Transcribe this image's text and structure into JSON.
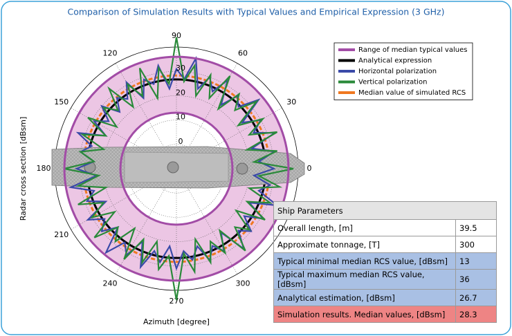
{
  "title": "Comparison of Simulation Results with Typical Values and Empirical Expression (3 GHz)",
  "chart_data": {
    "type": "polar",
    "rlabel": "Radar cross section [dBsm]",
    "thetalabel": "Azimuth [degree]",
    "rlim": [
      -10,
      40
    ],
    "rticks": [
      0,
      10,
      20,
      30
    ],
    "thetaticks": [
      0,
      30,
      60,
      90,
      120,
      150,
      180,
      210,
      240,
      270,
      300
    ],
    "grid": true,
    "legend": "upper right",
    "theta": [
      0,
      5,
      10,
      15,
      20,
      25,
      30,
      35,
      40,
      45,
      50,
      55,
      60,
      65,
      70,
      75,
      80,
      85,
      90,
      95,
      100,
      105,
      110,
      115,
      120,
      125,
      130,
      135,
      140,
      145,
      150,
      155,
      160,
      165,
      170,
      175,
      180,
      185,
      190,
      195,
      200,
      205,
      210,
      215,
      220,
      225,
      230,
      235,
      240,
      245,
      250,
      255,
      260,
      265,
      270,
      275,
      280,
      285,
      290,
      295,
      300,
      305,
      310,
      315,
      320,
      325,
      330,
      335,
      340,
      345,
      350,
      355
    ],
    "series": [
      {
        "name": "Range of median typical values",
        "kind": "band",
        "color": "#a24ca6",
        "fill": "#ecc6e4",
        "values": [
          13,
          36
        ]
      },
      {
        "name": "Analytical expression",
        "kind": "circle",
        "color": "#000000",
        "values": [
          26.7
        ]
      },
      {
        "name": "Horizontal polarization",
        "kind": "trace",
        "color": "#3a4aa8",
        "values": [
          30,
          24,
          31,
          22,
          33,
          25,
          30,
          23,
          34,
          26,
          29,
          22,
          32,
          25,
          30,
          24,
          36,
          27,
          31,
          23,
          33,
          26,
          29,
          22,
          31,
          25,
          28,
          23,
          30,
          24,
          29,
          22,
          33,
          26,
          30,
          24,
          31,
          23,
          34,
          25,
          29,
          22,
          32,
          26,
          30,
          24,
          35,
          27,
          31,
          23,
          33,
          25,
          29,
          22,
          31,
          24,
          28,
          23,
          30,
          25,
          29,
          22,
          33,
          26,
          30,
          24,
          31,
          23,
          34,
          25,
          29,
          22
        ]
      },
      {
        "name": "Vertical polarization",
        "kind": "trace",
        "color": "#2a8a3a",
        "values": [
          38,
          22,
          32,
          20,
          34,
          23,
          31,
          21,
          33,
          24,
          30,
          20,
          34,
          22,
          31,
          21,
          33,
          26,
          44,
          25,
          32,
          20,
          34,
          23,
          30,
          21,
          33,
          24,
          29,
          20,
          32,
          22,
          31,
          21,
          30,
          24,
          36,
          22,
          31,
          20,
          33,
          23,
          30,
          21,
          34,
          24,
          29,
          20,
          33,
          22,
          31,
          21,
          32,
          26,
          44,
          25,
          33,
          20,
          31,
          23,
          30,
          21,
          34,
          24,
          29,
          20,
          32,
          22,
          31,
          21,
          33,
          24
        ]
      },
      {
        "name": "Median value of simulated RCS",
        "kind": "dashed",
        "color": "#f07820",
        "values": [
          28.3
        ]
      }
    ]
  },
  "table": {
    "title": "Ship Parameters",
    "rows": [
      [
        "Overall length, [m]",
        "39.5"
      ],
      [
        "Approximate tonnage, [T]",
        "300"
      ],
      [
        "Typical minimal median RCS value, [dBsm]",
        "13"
      ],
      [
        "Typical maximum median RCS value, [dBsm]",
        "36"
      ],
      [
        "Analytical estimation, [dBsm]",
        "26.7"
      ],
      [
        "Simulation results. Median values, [dBsm]",
        "28.3"
      ]
    ]
  }
}
